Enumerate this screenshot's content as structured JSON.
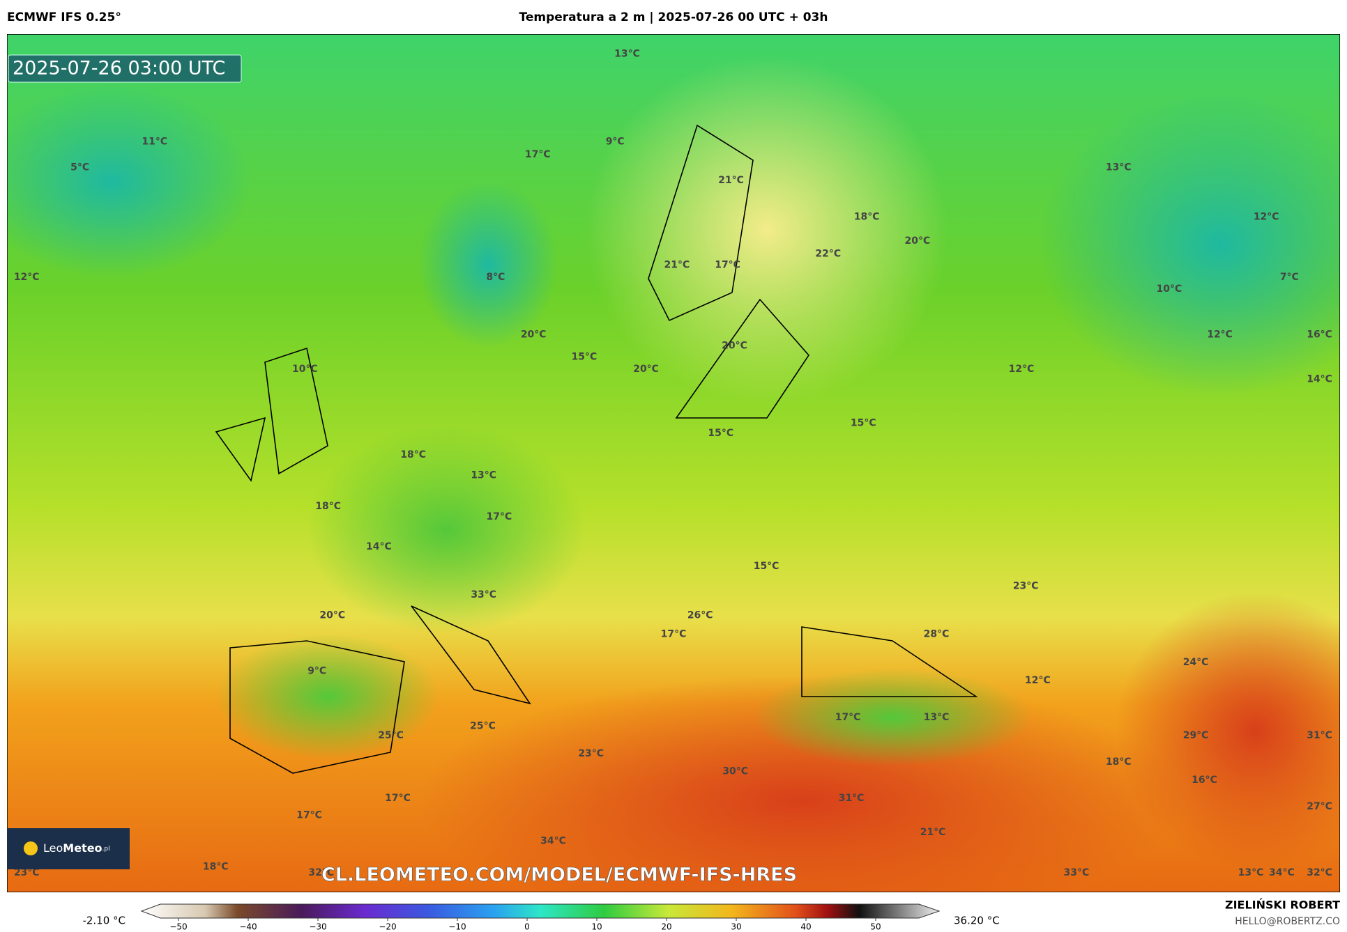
{
  "header": {
    "model": "ECMWF IFS 0.25°",
    "title": "Temperatura a 2 m | 2025-07-26 00 UTC + 03h"
  },
  "map": {
    "timestamp": "2025-07-26 03:00 UTC",
    "labels": [
      "13°C",
      "11°C",
      "5°C",
      "17°C",
      "9°C",
      "21°C",
      "13°C",
      "12°C",
      "18°C",
      "20°C",
      "22°C",
      "12°C",
      "8°C",
      "21°C",
      "17°C",
      "7°C",
      "10°C",
      "20°C",
      "12°C",
      "16°C",
      "20°C",
      "15°C",
      "10°C",
      "20°C",
      "12°C",
      "14°C",
      "15°C",
      "15°C",
      "18°C",
      "13°C",
      "18°C",
      "17°C",
      "14°C",
      "15°C",
      "23°C",
      "33°C",
      "20°C",
      "26°C",
      "17°C",
      "28°C",
      "24°C",
      "9°C",
      "12°C",
      "17°C",
      "13°C",
      "25°C",
      "25°C",
      "29°C",
      "31°C",
      "23°C",
      "18°C",
      "30°C",
      "16°C",
      "31°C",
      "17°C",
      "27°C",
      "17°C",
      "21°C",
      "34°C",
      "18°C",
      "23°C",
      "32°C",
      "33°C",
      "13°C",
      "34°C",
      "32°C"
    ],
    "url": "CL.LEOMETEO.COM/MODEL/ECMWF-IFS-HRES",
    "logo": {
      "part1": "Leo",
      "part2": "Meteo",
      "suffix": ".pl"
    }
  },
  "legend": {
    "min": "-2.10 °C",
    "max": "36.20 °C",
    "ticks": [
      "−50",
      "−40",
      "−30",
      "−20",
      "−10",
      "0",
      "10",
      "20",
      "30",
      "40",
      "50"
    ]
  },
  "footer": {
    "author": "ZIELIŃSKI ROBERT",
    "contact": "HELLO@ROBERTZ.CO"
  }
}
